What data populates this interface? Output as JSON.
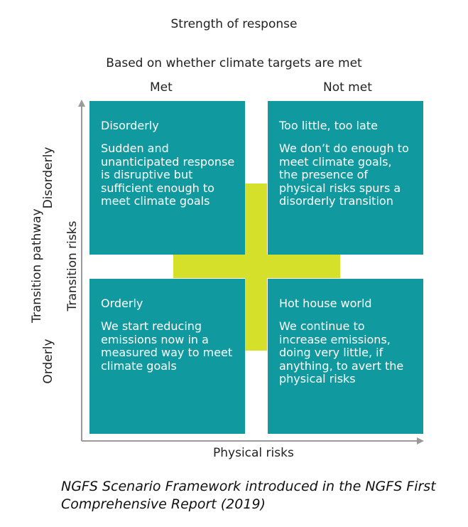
{
  "header": {
    "title": "Strength of response",
    "subtitle": "Based on whether climate targets are met"
  },
  "columns": {
    "met": "Met",
    "not_met": "Not met"
  },
  "axes": {
    "outer_y_label": "Transition pathway",
    "inner_y_label": "Transition risks",
    "x_label": "Physical risks",
    "row_disorderly": "Disorderly",
    "row_orderly": "Orderly"
  },
  "quadrants": {
    "disorderly": {
      "title": "Disorderly",
      "description": "Sudden and unanticipated response is disruptive but sufficient enough to meet climate goals"
    },
    "too_little": {
      "title": "Too little, too late",
      "description": "We don’t do enough to meet climate goals, the presence of physical risks spurs a disorderly transition"
    },
    "orderly": {
      "title": "Orderly",
      "description": "We start reducing emissions now in a measured way to meet climate goals"
    },
    "hot_house": {
      "title": "Hot house world",
      "description": "We continue to increase emissions, doing very little, if anything, to avert the physical risks"
    }
  },
  "caption": {
    "line1": "NGFS Scenario Framework introduced in the NGFS First",
    "line2": "Comprehensive Report (2019)"
  },
  "colors": {
    "quadrant": "#109aa0",
    "cross": "#d4e02a",
    "axis": "#9a9a9a"
  }
}
